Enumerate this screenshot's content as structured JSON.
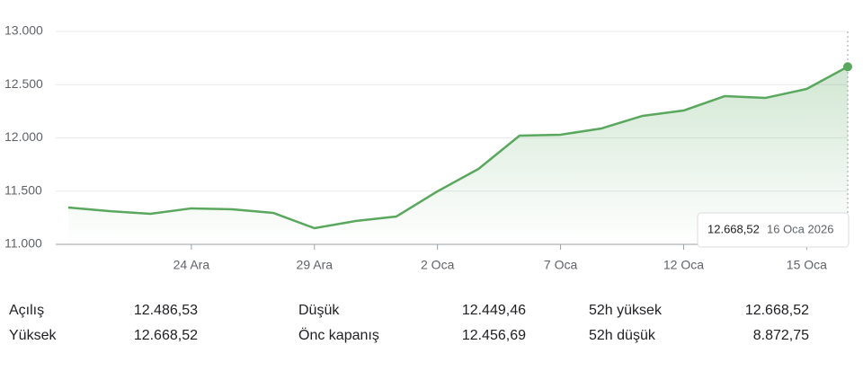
{
  "chart_data": {
    "type": "line",
    "categories": [
      null,
      null,
      null,
      "24 Ara",
      null,
      null,
      "29 Ara",
      null,
      null,
      "2 Oca",
      null,
      null,
      "7 Oca",
      null,
      null,
      "12 Oca",
      null,
      null,
      "15 Oca",
      null
    ],
    "series": [
      {
        "color": "#5aa75e",
        "values": [
          11346,
          11312,
          11287,
          11338,
          11329,
          11295,
          11152,
          11219,
          11262,
          11498,
          11709,
          12021,
          12030,
          12089,
          12207,
          12257,
          12392,
          12376,
          12460,
          12668.52
        ]
      }
    ],
    "ylim": [
      11000,
      13000
    ],
    "yticks": [
      {
        "value": 11000,
        "label": "11.000"
      },
      {
        "value": 11500,
        "label": "11.500"
      },
      {
        "value": 12000,
        "label": "12.000"
      },
      {
        "value": 12500,
        "label": "12.500"
      },
      {
        "value": 13000,
        "label": "13.000"
      }
    ],
    "grid": true,
    "tooltip": {
      "value_label": "12.668,52",
      "date": "16 Oca 2026"
    }
  },
  "stats": [
    [
      {
        "label": "Açılış",
        "value": "12.486,53"
      },
      {
        "label": "Düşük",
        "value": "12.449,46"
      },
      {
        "label": "52h yüksek",
        "value": "12.668,52"
      }
    ],
    [
      {
        "label": "Yüksek",
        "value": "12.668,52"
      },
      {
        "label": "Önc kapanış",
        "value": "12.456,69"
      },
      {
        "label": "52h düşük",
        "value": "8.872,75"
      }
    ]
  ]
}
